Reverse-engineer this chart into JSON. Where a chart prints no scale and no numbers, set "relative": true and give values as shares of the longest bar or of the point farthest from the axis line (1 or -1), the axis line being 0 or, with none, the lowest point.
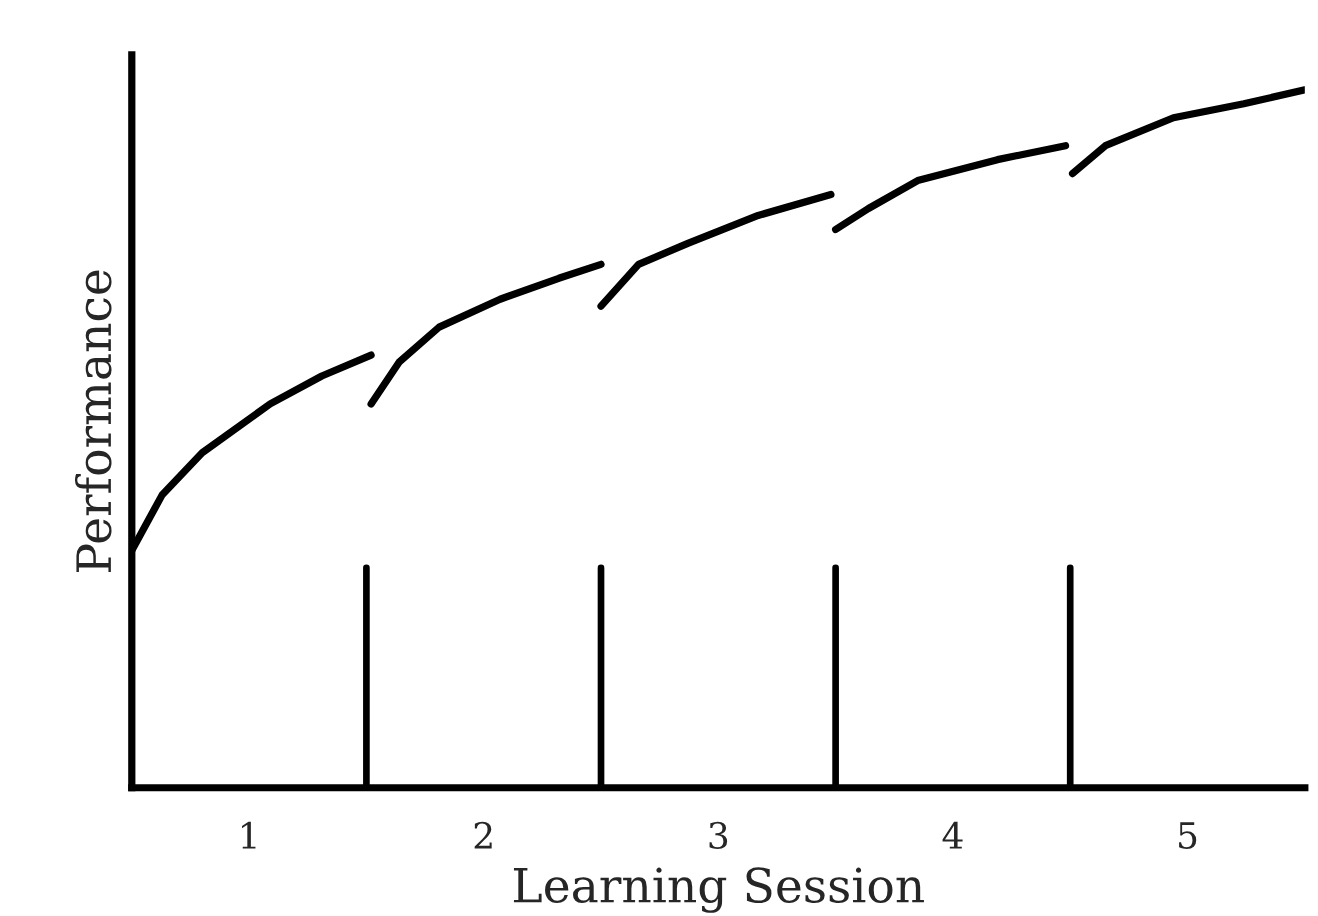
{
  "chart_data": {
    "type": "line",
    "relative": true,
    "xlabel": "Learning Session",
    "ylabel": "Performance",
    "xlim": [
      0.5,
      5.5
    ],
    "xticks": [
      1,
      2,
      3,
      4,
      5
    ],
    "series": [
      {
        "color": "#000000",
        "x": [
          0.5,
          0.63,
          0.8,
          1.09,
          1.31,
          1.52
        ],
        "values": [
          0.34,
          0.42,
          0.48,
          0.55,
          0.59,
          0.62
        ]
      },
      {
        "color": "#000000",
        "x": [
          1.52,
          1.64,
          1.81,
          2.07,
          2.32,
          2.5
        ],
        "values": [
          0.55,
          0.61,
          0.66,
          0.7,
          0.73,
          0.75
        ]
      },
      {
        "color": "#000000",
        "x": [
          2.5,
          2.66,
          2.87,
          3.17,
          3.48
        ],
        "values": [
          0.69,
          0.75,
          0.78,
          0.82,
          0.85
        ]
      },
      {
        "color": "#000000",
        "x": [
          3.5,
          3.64,
          3.85,
          4.19,
          4.48
        ],
        "values": [
          0.8,
          0.83,
          0.87,
          0.9,
          0.92
        ]
      },
      {
        "color": "#000000",
        "x": [
          4.51,
          4.65,
          4.94,
          5.24,
          5.5
        ],
        "values": [
          0.88,
          0.92,
          0.96,
          0.98,
          1.0
        ]
      }
    ],
    "ref_lines": [
      {
        "axis": "x",
        "value": 1.5,
        "color": "#000000"
      },
      {
        "axis": "x",
        "value": 2.5,
        "color": "#000000"
      },
      {
        "axis": "x",
        "value": 3.5,
        "color": "#000000"
      },
      {
        "axis": "x",
        "value": 4.5,
        "color": "#000000"
      }
    ],
    "grid": false,
    "legend": false,
    "marker": "none",
    "line_style": "solid"
  }
}
